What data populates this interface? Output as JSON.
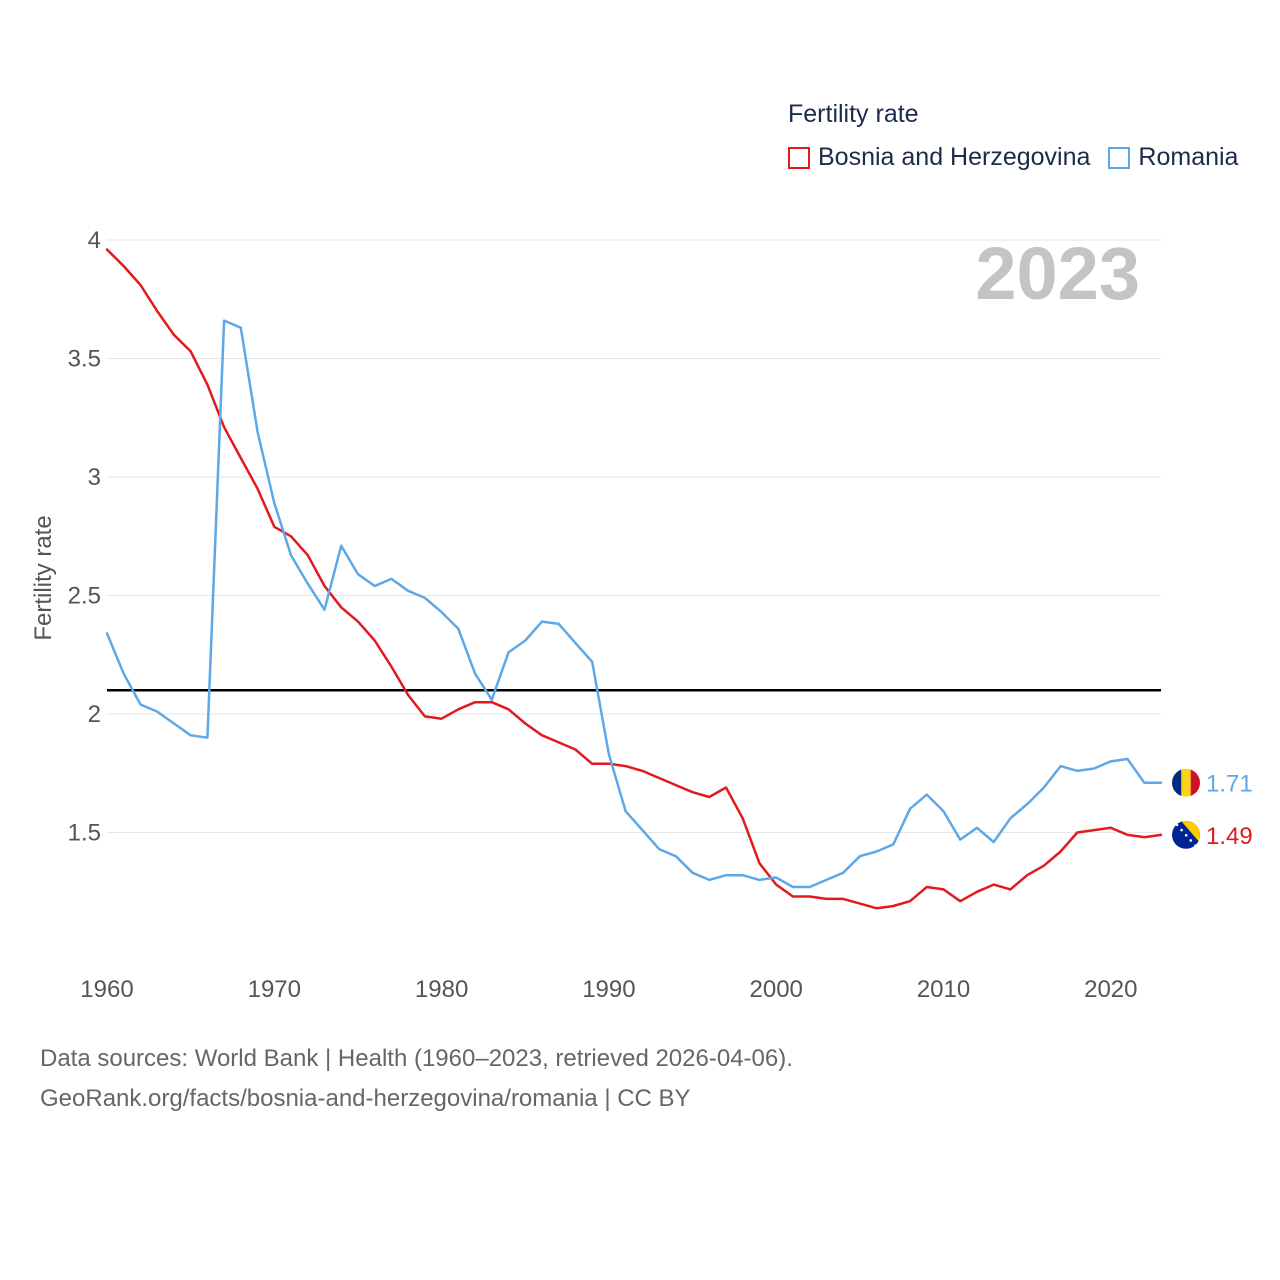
{
  "chart_data": {
    "type": "line",
    "title": "",
    "year_label": "2023",
    "ylabel": "Fertility rate",
    "xlabel": "",
    "xlim": [
      1960,
      2023
    ],
    "ylim": [
      1,
      4
    ],
    "xticks": [
      1960,
      1970,
      1980,
      1990,
      2000,
      2010,
      2020
    ],
    "yticks": [
      1.5,
      2,
      2.5,
      3,
      3.5,
      4
    ],
    "ytick_labels": [
      "1.5",
      "2",
      "2.5",
      "3",
      "3.5",
      "4"
    ],
    "grid": true,
    "reference_line": 2.1,
    "legend": {
      "title": "Fertility rate",
      "position": "top-right"
    },
    "x": [
      1960,
      1961,
      1962,
      1963,
      1964,
      1965,
      1966,
      1967,
      1968,
      1969,
      1970,
      1971,
      1972,
      1973,
      1974,
      1975,
      1976,
      1977,
      1978,
      1979,
      1980,
      1981,
      1982,
      1983,
      1984,
      1985,
      1986,
      1987,
      1988,
      1989,
      1990,
      1991,
      1992,
      1993,
      1994,
      1995,
      1996,
      1997,
      1998,
      1999,
      2000,
      2001,
      2002,
      2003,
      2004,
      2005,
      2006,
      2007,
      2008,
      2009,
      2010,
      2011,
      2012,
      2013,
      2014,
      2015,
      2016,
      2017,
      2018,
      2019,
      2020,
      2021,
      2022,
      2023
    ],
    "series": [
      {
        "name": "Bosnia and Herzegovina",
        "color": "#e31a1c",
        "end_label": "1.49",
        "values": [
          3.96,
          3.89,
          3.81,
          3.7,
          3.6,
          3.53,
          3.39,
          3.21,
          3.08,
          2.95,
          2.79,
          2.75,
          2.67,
          2.54,
          2.45,
          2.39,
          2.31,
          2.2,
          2.08,
          1.99,
          1.98,
          2.02,
          2.05,
          2.05,
          2.02,
          1.96,
          1.91,
          1.88,
          1.85,
          1.79,
          1.79,
          1.78,
          1.76,
          1.73,
          1.7,
          1.67,
          1.65,
          1.69,
          1.56,
          1.37,
          1.28,
          1.23,
          1.23,
          1.22,
          1.22,
          1.2,
          1.18,
          1.19,
          1.21,
          1.27,
          1.26,
          1.21,
          1.25,
          1.28,
          1.26,
          1.32,
          1.36,
          1.42,
          1.5,
          1.51,
          1.52,
          1.49,
          1.48,
          1.49
        ]
      },
      {
        "name": "Romania",
        "color": "#5ea8e8",
        "end_label": "1.71",
        "values": [
          2.34,
          2.17,
          2.04,
          2.01,
          1.96,
          1.91,
          1.9,
          3.66,
          3.63,
          3.19,
          2.89,
          2.67,
          2.55,
          2.44,
          2.71,
          2.59,
          2.54,
          2.57,
          2.52,
          2.49,
          2.43,
          2.36,
          2.17,
          2.06,
          2.26,
          2.31,
          2.39,
          2.38,
          2.3,
          2.22,
          1.83,
          1.59,
          1.51,
          1.43,
          1.4,
          1.33,
          1.3,
          1.32,
          1.32,
          1.3,
          1.31,
          1.27,
          1.27,
          1.3,
          1.33,
          1.4,
          1.42,
          1.45,
          1.6,
          1.66,
          1.59,
          1.47,
          1.52,
          1.46,
          1.56,
          1.62,
          1.69,
          1.78,
          1.76,
          1.77,
          1.8,
          1.81,
          1.71,
          1.71
        ]
      }
    ]
  },
  "footer": {
    "line1": "Data sources: World Bank | Health (1960–2023, retrieved 2026-04-06).",
    "line2": "GeoRank.org/facts/bosnia-and-herzegovina/romania | CC BY"
  }
}
